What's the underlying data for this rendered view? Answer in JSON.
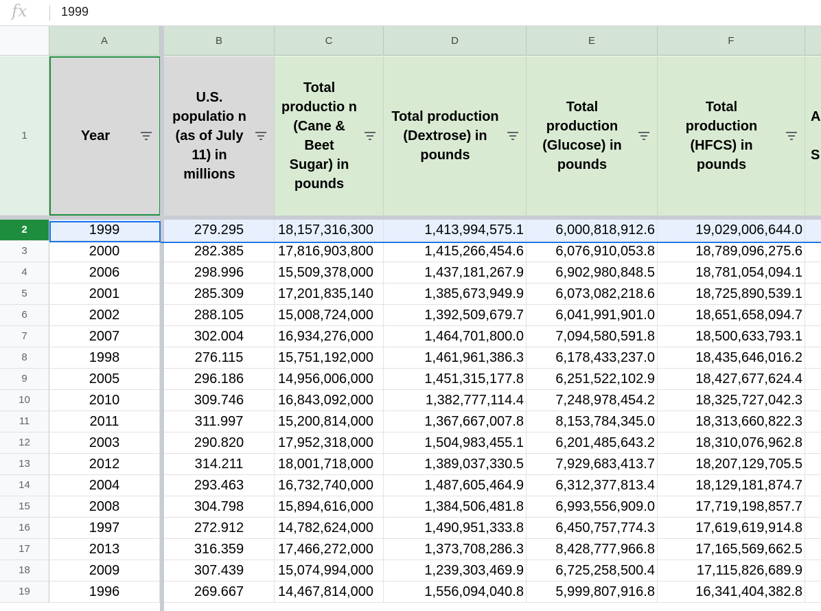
{
  "formula_bar": {
    "fx_label": "fx",
    "value": "1999"
  },
  "columns": [
    "A",
    "B",
    "C",
    "D",
    "E",
    "F"
  ],
  "header_row": {
    "row_number": "1",
    "cells": [
      "Year",
      "U.S. populatio n (as of July 11) in millions",
      "Total productio n (Cane & Beet Sugar) in pounds",
      "Total production (Dextrose) in pounds",
      "Total production (Glucose) in pounds",
      "Total production (HFCS) in pounds",
      "A\nS"
    ]
  },
  "rows": [
    {
      "num": "2",
      "cells": [
        "1999",
        "279.295",
        "18,157,316,300",
        "1,413,994,575.1",
        "6,000,818,912.6",
        "19,029,006,644.0"
      ]
    },
    {
      "num": "3",
      "cells": [
        "2000",
        "282.385",
        "17,816,903,800",
        "1,415,266,454.6",
        "6,076,910,053.8",
        "18,789,096,275.6"
      ]
    },
    {
      "num": "4",
      "cells": [
        "2006",
        "298.996",
        "15,509,378,000",
        "1,437,181,267.9",
        "6,902,980,848.5",
        "18,781,054,094.1"
      ]
    },
    {
      "num": "5",
      "cells": [
        "2001",
        "285.309",
        "17,201,835,140",
        "1,385,673,949.9",
        "6,073,082,218.6",
        "18,725,890,539.1"
      ]
    },
    {
      "num": "6",
      "cells": [
        "2002",
        "288.105",
        "15,008,724,000",
        "1,392,509,679.7",
        "6,041,991,901.0",
        "18,651,658,094.7"
      ]
    },
    {
      "num": "7",
      "cells": [
        "2007",
        "302.004",
        "16,934,276,000",
        "1,464,701,800.0",
        "7,094,580,591.8",
        "18,500,633,793.1"
      ]
    },
    {
      "num": "8",
      "cells": [
        "1998",
        "276.115",
        "15,751,192,000",
        "1,461,961,386.3",
        "6,178,433,237.0",
        "18,435,646,016.2"
      ]
    },
    {
      "num": "9",
      "cells": [
        "2005",
        "296.186",
        "14,956,006,000",
        "1,451,315,177.8",
        "6,251,522,102.9",
        "18,427,677,624.4"
      ]
    },
    {
      "num": "10",
      "cells": [
        "2010",
        "309.746",
        "16,843,092,000",
        "1,382,777,114.4",
        "7,248,978,454.2",
        "18,325,727,042.3"
      ]
    },
    {
      "num": "11",
      "cells": [
        "2011",
        "311.997",
        "15,200,814,000",
        "1,367,667,007.8",
        "8,153,784,345.0",
        "18,313,660,822.3"
      ]
    },
    {
      "num": "12",
      "cells": [
        "2003",
        "290.820",
        "17,952,318,000",
        "1,504,983,455.1",
        "6,201,485,643.2",
        "18,310,076,962.8"
      ]
    },
    {
      "num": "13",
      "cells": [
        "2012",
        "314.211",
        "18,001,718,000",
        "1,389,037,330.5",
        "7,929,683,413.7",
        "18,207,129,705.5"
      ]
    },
    {
      "num": "14",
      "cells": [
        "2004",
        "293.463",
        "16,732,740,000",
        "1,487,605,464.9",
        "6,312,377,813.4",
        "18,129,181,874.7"
      ]
    },
    {
      "num": "15",
      "cells": [
        "2008",
        "304.798",
        "15,894,616,000",
        "1,384,506,481.8",
        "6,993,556,909.0",
        "17,719,198,857.7"
      ]
    },
    {
      "num": "16",
      "cells": [
        "1997",
        "272.912",
        "14,782,624,000",
        "1,490,951,333.8",
        "6,450,757,774.3",
        "17,619,619,914.8"
      ]
    },
    {
      "num": "17",
      "cells": [
        "2013",
        "316.359",
        "17,466,272,000",
        "1,373,708,286.3",
        "8,428,777,966.8",
        "17,165,569,662.5"
      ]
    },
    {
      "num": "18",
      "cells": [
        "2009",
        "307.439",
        "15,074,994,000",
        "1,239,303,469.9",
        "6,725,258,500.4",
        "17,115,826,689.9"
      ]
    },
    {
      "num": "19",
      "cells": [
        "1996",
        "269.667",
        "14,467,814,000",
        "1,556,094,040.8",
        "5,999,807,916.8",
        "16,341,404,382.8"
      ]
    }
  ],
  "colors": {
    "header_green": "#d9ead3",
    "column_header_green": "#d3e3d5",
    "selected_row_number": "#1e8e3e",
    "selection_blue": "#1a73e8"
  }
}
